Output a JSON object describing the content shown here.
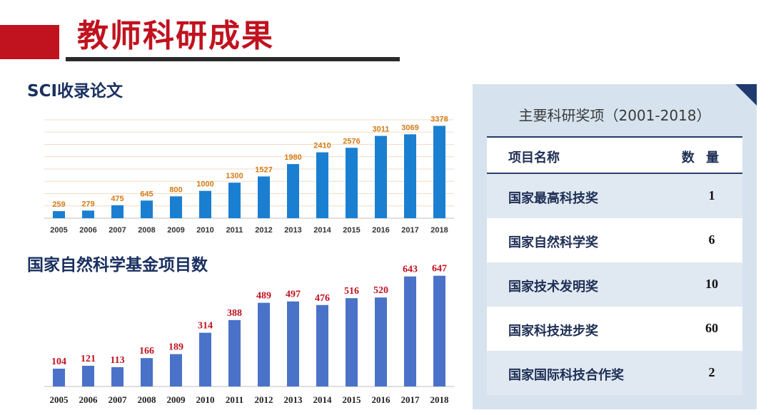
{
  "page": {
    "title": "教师科研成果"
  },
  "sci_section": {
    "title": "SCI收录论文"
  },
  "nsfc_section": {
    "title": "国家自然科学基金项目数"
  },
  "awards": {
    "title": "主要科研奖项（2001-2018）",
    "header": {
      "name": "项目名称",
      "count": "数 量"
    },
    "rows": [
      {
        "name": "国家最高科技奖",
        "count": "1"
      },
      {
        "name": "国家自然科学奖",
        "count": "6"
      },
      {
        "name": "国家技术发明奖",
        "count": "10"
      },
      {
        "name": "国家科技进步奖",
        "count": "60"
      },
      {
        "name": "国家国际科技合作奖",
        "count": "2"
      }
    ]
  },
  "colors": {
    "brand_red": "#c0121f",
    "sci_bar": "#1a7fd0",
    "sci_label": "#d47a16",
    "nsfc_bar": "#4a72c8",
    "nsfc_label": "#c0121f"
  },
  "chart_data": [
    {
      "type": "bar",
      "title": "SCI收录论文",
      "categories": [
        "2005",
        "2006",
        "2007",
        "2008",
        "2009",
        "2010",
        "2011",
        "2012",
        "2013",
        "2014",
        "2015",
        "2016",
        "2017",
        "2018"
      ],
      "values": [
        259,
        279,
        475,
        645,
        800,
        1000,
        1300,
        1527,
        1980,
        2410,
        2576,
        3011,
        3069,
        3378
      ],
      "ylim": [
        0,
        3600
      ],
      "grid": true,
      "xlabel": "",
      "ylabel": ""
    },
    {
      "type": "bar",
      "title": "国家自然科学基金项目数",
      "categories": [
        "2005",
        "2006",
        "2007",
        "2008",
        "2009",
        "2010",
        "2011",
        "2012",
        "2013",
        "2014",
        "2015",
        "2016",
        "2017",
        "2018"
      ],
      "values": [
        104,
        121,
        113,
        166,
        189,
        314,
        388,
        489,
        497,
        476,
        516,
        520,
        643,
        647
      ],
      "ylim": [
        0,
        700
      ],
      "grid": false,
      "xlabel": "",
      "ylabel": ""
    }
  ]
}
